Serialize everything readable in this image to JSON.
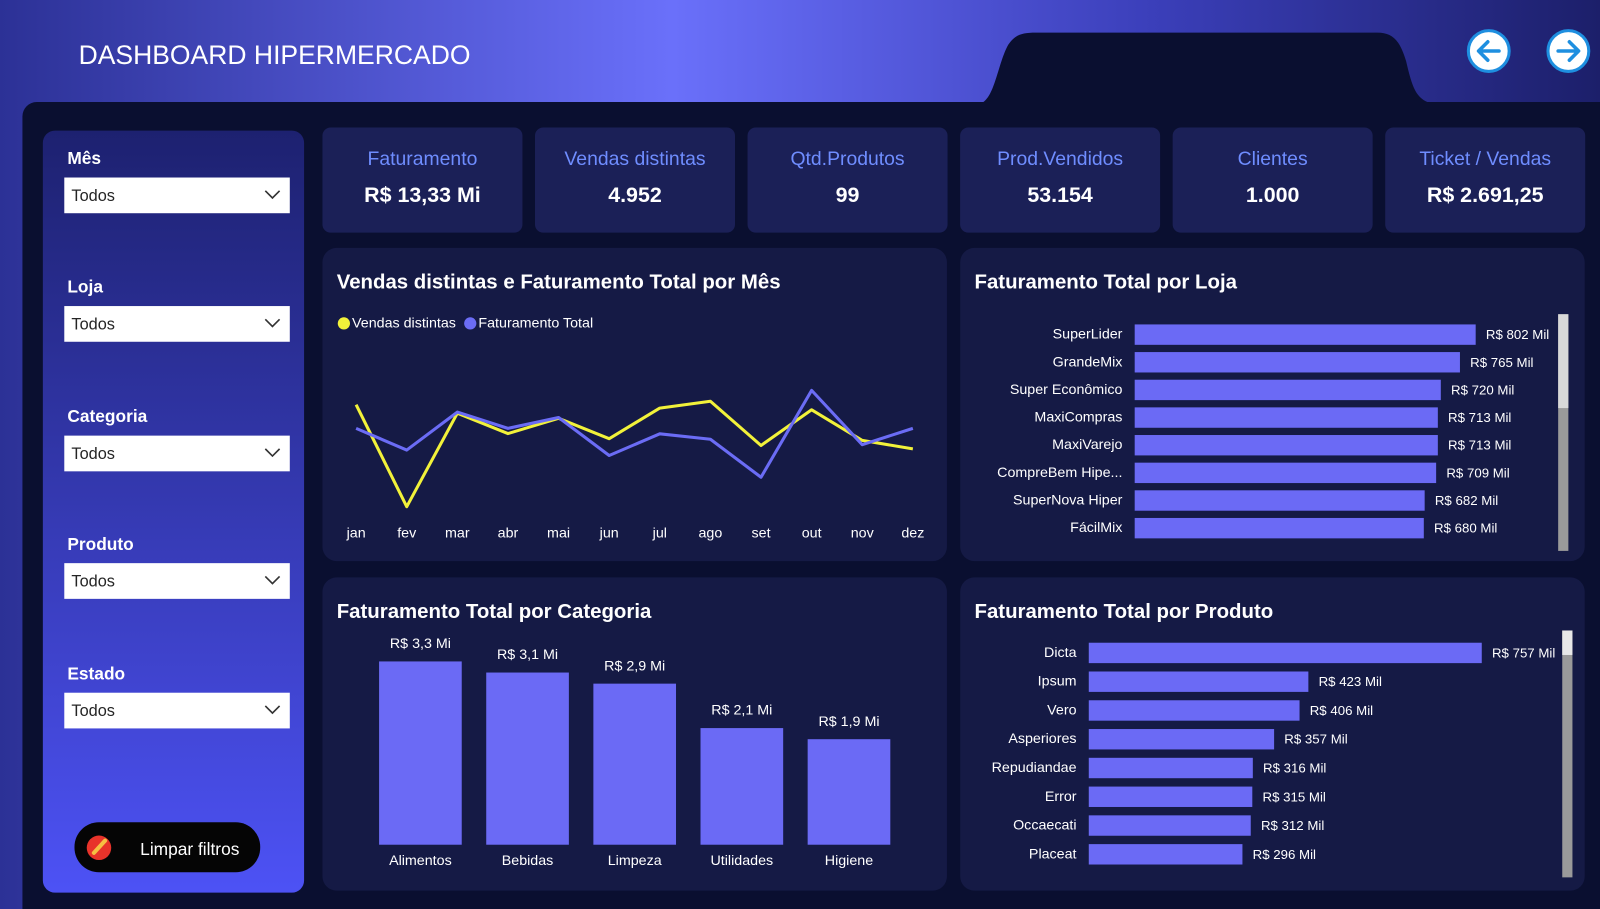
{
  "header": {
    "title": "DASHBOARD HIPERMERCADO"
  },
  "filters": [
    {
      "label": "Mês",
      "value": "Todos"
    },
    {
      "label": "Loja",
      "value": "Todos"
    },
    {
      "label": "Categoria",
      "value": "Todos"
    },
    {
      "label": "Produto",
      "value": "Todos"
    },
    {
      "label": "Estado",
      "value": "Todos"
    }
  ],
  "clear_button": "Limpar filtros",
  "kpis": [
    {
      "label": "Faturamento",
      "value": "R$ 13,33 Mi"
    },
    {
      "label": "Vendas distintas",
      "value": "4.952"
    },
    {
      "label": "Qtd.Produtos",
      "value": "99"
    },
    {
      "label": "Prod.Vendidos",
      "value": "53.154"
    },
    {
      "label": "Clientes",
      "value": "1.000"
    },
    {
      "label": "Ticket / Vendas",
      "value": "R$ 2.691,25"
    }
  ],
  "chart_data": [
    {
      "type": "line",
      "title": "Vendas distintas e Faturamento Total por Mês",
      "categories": [
        "jan",
        "fev",
        "mar",
        "abr",
        "mai",
        "jun",
        "jul",
        "ago",
        "set",
        "out",
        "nov",
        "dez"
      ],
      "series": [
        {
          "name": "Vendas distintas",
          "color": "#f2f23a",
          "values": [
            430,
            370,
            425,
            413,
            422,
            410,
            428,
            432,
            406,
            427,
            409,
            404
          ]
        },
        {
          "name": "Faturamento Total",
          "color": "#6b6cf5",
          "axis": "y2",
          "values": [
            1.12,
            1.08,
            1.15,
            1.12,
            1.14,
            1.07,
            1.11,
            1.1,
            1.03,
            1.19,
            1.09,
            1.12
          ]
        }
      ],
      "ylim": [
        365,
        440
      ],
      "y2lim": [
        0.96,
        1.195
      ]
    },
    {
      "type": "barh",
      "title": "Faturamento Total por Loja",
      "categories": [
        "SuperLider",
        "GrandeMix",
        "Super Econômico",
        "MaxiCompras",
        "MaxiVarejo",
        "CompreBem Hipe...",
        "SuperNova Hiper",
        "FácilMix"
      ],
      "values": [
        802,
        765,
        720,
        713,
        713,
        709,
        682,
        680
      ],
      "value_labels": [
        "R$ 802 Mil",
        "R$ 765 Mil",
        "R$ 720 Mil",
        "R$ 713 Mil",
        "R$ 713 Mil",
        "R$ 709 Mil",
        "R$ 682 Mil",
        "R$ 680 Mil"
      ],
      "color": "#6b6af5",
      "xlim": [
        0,
        900
      ]
    },
    {
      "type": "bar",
      "title": "Faturamento Total por Categoria",
      "categories": [
        "Alimentos",
        "Bebidas",
        "Limpeza",
        "Utilidades",
        "Higiene"
      ],
      "values": [
        3.3,
        3.1,
        2.9,
        2.1,
        1.9
      ],
      "value_labels": [
        "R$ 3,3 Mi",
        "R$ 3,1 Mi",
        "R$ 2,9 Mi",
        "R$ 2,1 Mi",
        "R$ 1,9 Mi"
      ],
      "color": "#6b6af5",
      "ylim": [
        0,
        3.6
      ]
    },
    {
      "type": "barh",
      "title": "Faturamento Total por Produto",
      "categories": [
        "Dicta",
        "Ipsum",
        "Vero",
        "Asperiores",
        "Repudiandae",
        "Error",
        "Occaecati",
        "Placeat"
      ],
      "values": [
        757,
        423,
        406,
        357,
        316,
        315,
        312,
        296
      ],
      "value_labels": [
        "R$ 757 Mil",
        "R$ 423 Mil",
        "R$ 406 Mil",
        "R$ 357 Mil",
        "R$ 316 Mil",
        "R$ 315 Mil",
        "R$ 312 Mil",
        "R$ 296 Mil"
      ],
      "color": "#6b6af5",
      "xlim": [
        0,
        800
      ]
    }
  ]
}
